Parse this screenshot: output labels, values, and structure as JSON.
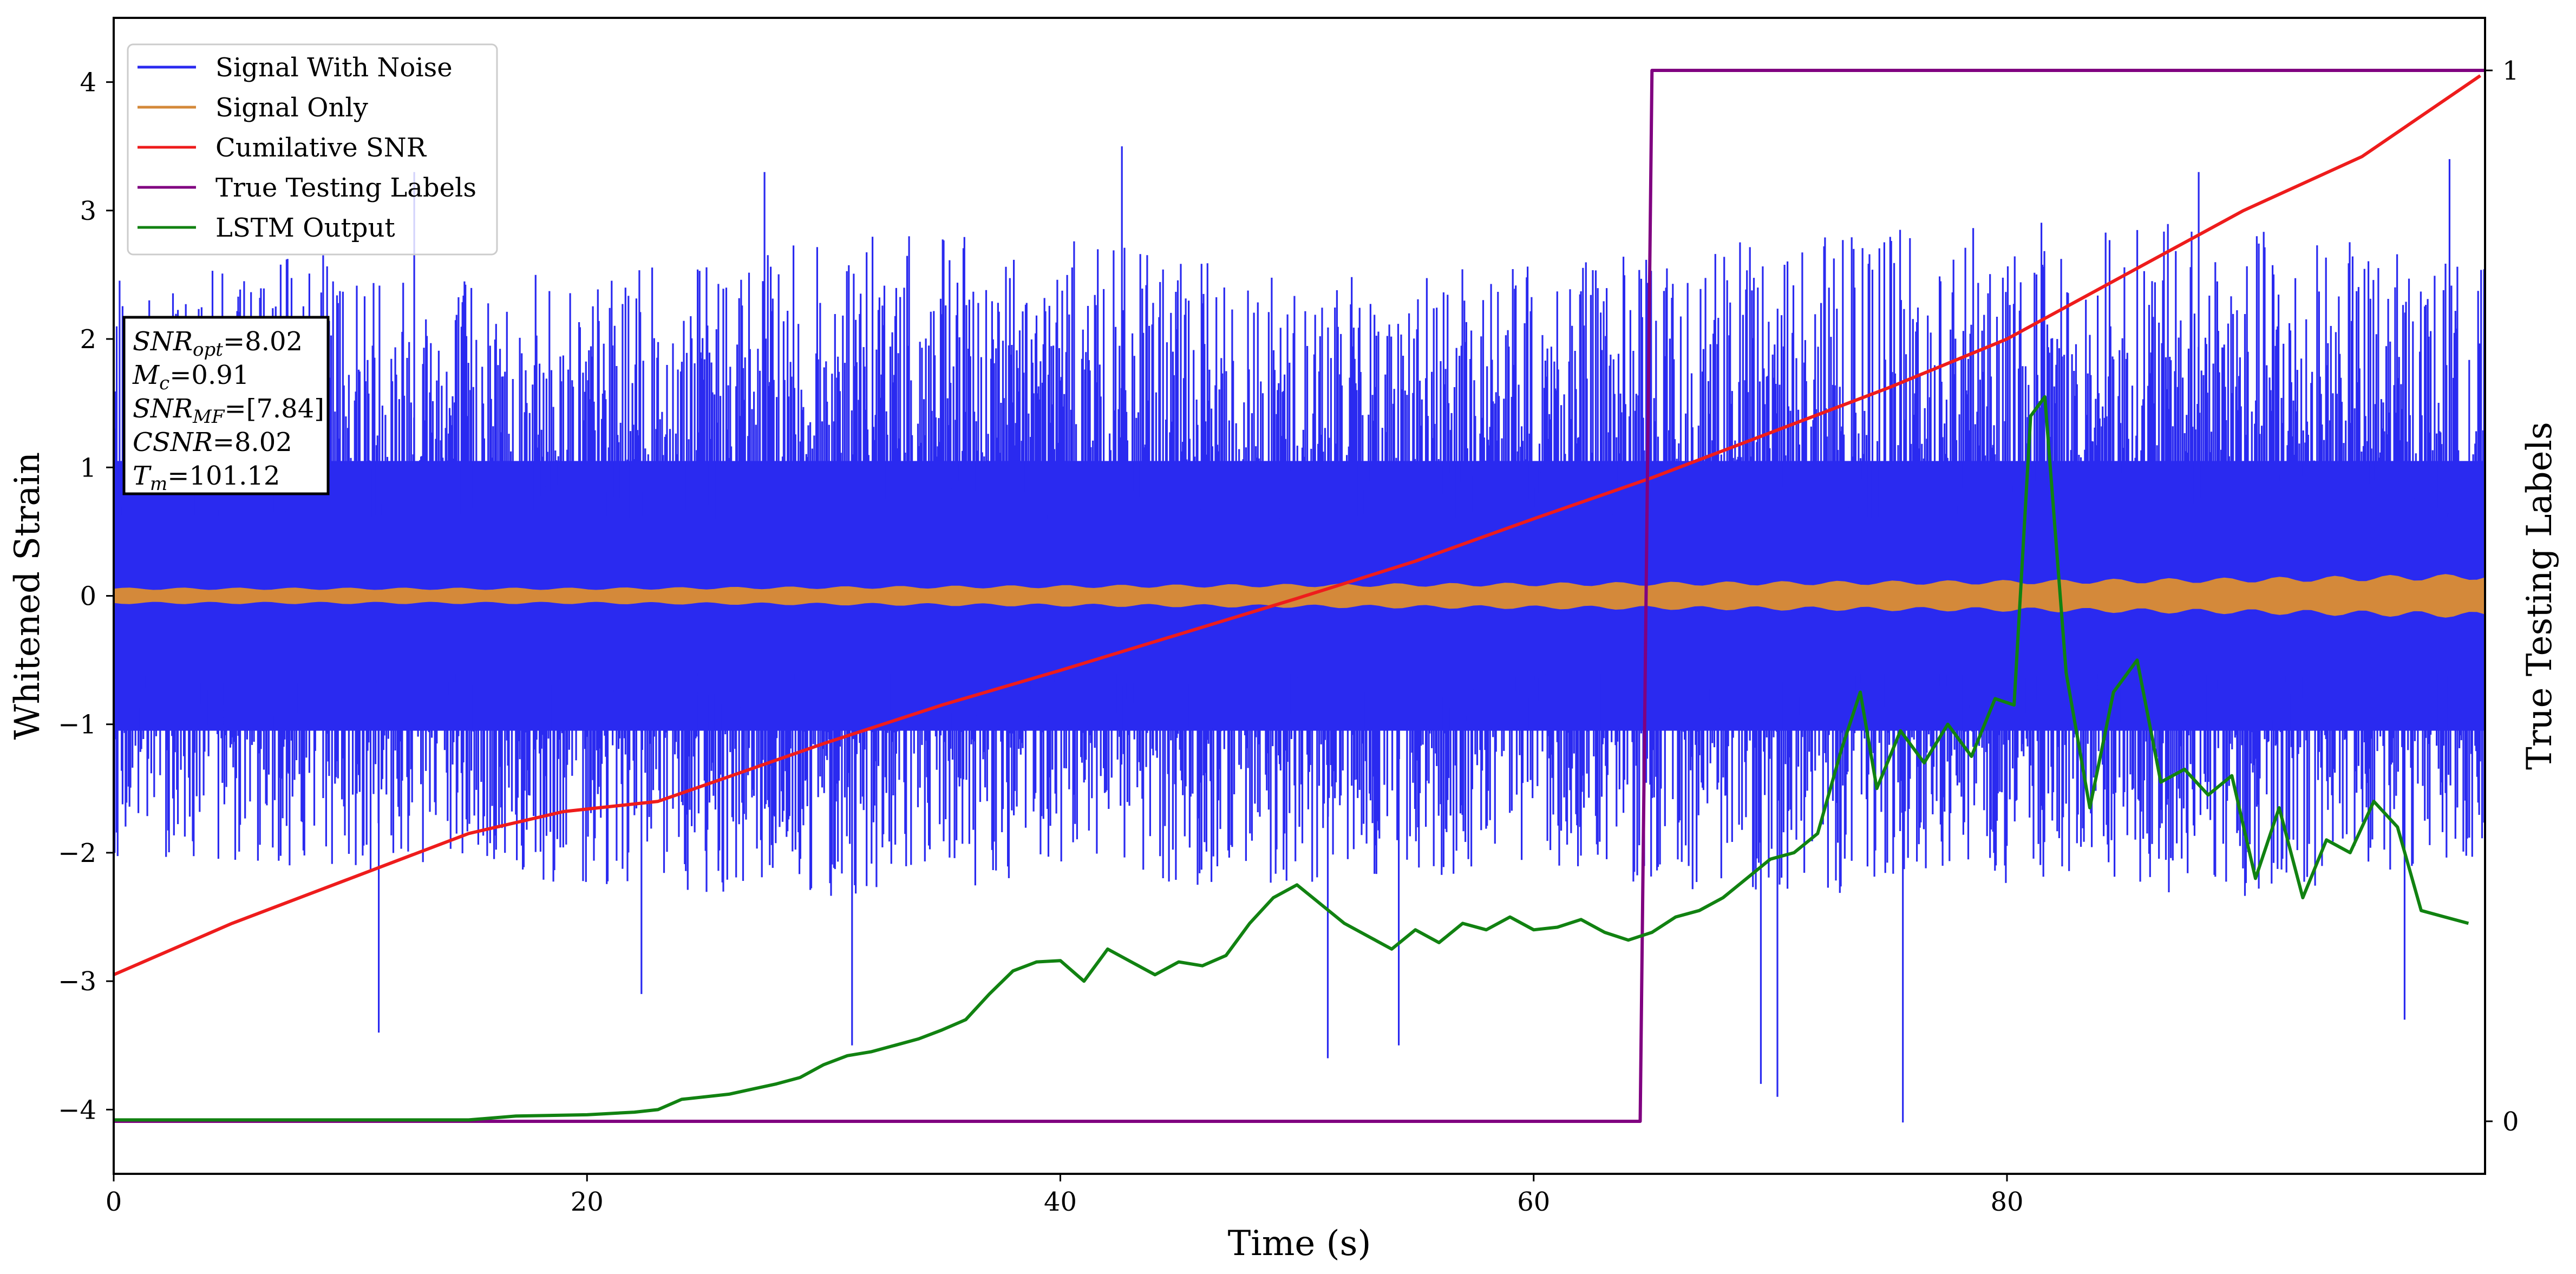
{
  "chart_data": {
    "type": "line",
    "xlabel": "Time (s)",
    "ylabel": "Whitened Strain",
    "ylabel_right": "True Testing Labels",
    "xlim": [
      0,
      100.2
    ],
    "ylim": [
      -4.5,
      4.5
    ],
    "ylim_right": [
      -0.05,
      1.05
    ],
    "x_ticks": [
      0,
      20,
      40,
      60,
      80
    ],
    "y_ticks": [
      -4,
      -3,
      -2,
      -1,
      0,
      1,
      2,
      3,
      4
    ],
    "y_ticks_right": [
      0,
      1
    ],
    "grid": false,
    "legend_position": "top-left",
    "colors": {
      "signal_with_noise": "#2a2af0",
      "signal_only": "#d4893a",
      "cumulative_snr": "#ee1c1c",
      "true_labels": "#800080",
      "lstm_output": "#118211"
    },
    "series": [
      {
        "name": "Signal With Noise",
        "axis": "left",
        "note_kind": "dense noise band",
        "envelope": {
          "x": [
            0,
            10,
            20,
            30,
            40,
            50,
            60,
            70,
            80,
            90,
            100
          ],
          "upper": [
            2.3,
            2.5,
            2.3,
            2.6,
            2.6,
            2.3,
            2.4,
            2.6,
            2.7,
            2.7,
            2.4
          ],
          "lower": [
            -1.9,
            -2.0,
            -2.1,
            -2.2,
            -2.1,
            -2.1,
            -2.0,
            -2.2,
            -2.1,
            -2.2,
            -1.9
          ]
        },
        "peaks": [
          {
            "x": 11.2,
            "y": -3.4
          },
          {
            "x": 12.7,
            "y": 3.3
          },
          {
            "x": 22.3,
            "y": -3.1
          },
          {
            "x": 27.5,
            "y": 3.3
          },
          {
            "x": 31.2,
            "y": -3.5
          },
          {
            "x": 42.6,
            "y": 3.5
          },
          {
            "x": 51.3,
            "y": -3.6
          },
          {
            "x": 54.3,
            "y": -3.5
          },
          {
            "x": 69.6,
            "y": -3.8
          },
          {
            "x": 70.3,
            "y": -3.9
          },
          {
            "x": 75.6,
            "y": -4.1
          },
          {
            "x": 98.7,
            "y": 3.4
          },
          {
            "x": 96.8,
            "y": -3.3
          },
          {
            "x": 88.1,
            "y": 3.3
          }
        ]
      },
      {
        "name": "Signal Only",
        "axis": "left",
        "envelope": {
          "x": [
            0,
            10,
            20,
            30,
            40,
            50,
            60,
            70,
            80,
            90,
            100
          ],
          "amplitude": [
            0.06,
            0.06,
            0.06,
            0.07,
            0.08,
            0.09,
            0.1,
            0.11,
            0.12,
            0.14,
            0.17
          ]
        }
      },
      {
        "name": "Cumilative SNR",
        "axis": "left",
        "x": [
          0,
          5,
          10,
          15,
          19,
          23,
          30,
          35,
          40,
          45,
          50,
          55,
          60,
          65,
          70,
          75,
          80,
          85,
          90,
          95,
          100
        ],
        "y": [
          -2.95,
          -2.55,
          -2.2,
          -1.85,
          -1.68,
          -1.6,
          -1.15,
          -0.85,
          -0.58,
          -0.3,
          -0.02,
          0.27,
          0.6,
          0.92,
          1.27,
          1.62,
          2.0,
          2.5,
          3.0,
          3.42,
          4.05
        ]
      },
      {
        "name": "True Testing Labels",
        "axis": "right",
        "x": [
          0,
          64.5,
          65.0,
          100.2
        ],
        "y": [
          0,
          0,
          1,
          1
        ]
      },
      {
        "name": "LSTM Output",
        "axis": "left",
        "x": [
          0,
          15,
          17,
          20,
          22,
          23,
          24,
          26,
          28,
          29,
          30,
          31,
          32,
          33,
          34,
          35,
          36,
          37,
          38,
          39,
          40,
          41,
          42,
          43,
          44,
          45,
          46,
          47,
          48,
          49,
          50,
          51,
          52,
          53,
          54,
          55,
          56,
          57,
          58,
          59,
          60,
          61,
          62,
          63,
          64,
          65,
          66,
          67,
          68,
          69,
          70,
          71,
          72,
          73,
          73.8,
          74.5,
          75.5,
          76.5,
          77.5,
          78.5,
          79.5,
          80.3,
          81.0,
          81.6,
          82.5,
          83.5,
          84.5,
          85.5,
          86.5,
          87.5,
          88.5,
          89.5,
          90.5,
          91.5,
          92.5,
          93.5,
          94.5,
          95.5,
          96.5,
          97.5,
          98.5,
          99.5
        ],
        "y": [
          -4.08,
          -4.08,
          -4.05,
          -4.04,
          -4.02,
          -4.0,
          -3.92,
          -3.88,
          -3.8,
          -3.75,
          -3.65,
          -3.58,
          -3.55,
          -3.5,
          -3.45,
          -3.38,
          -3.3,
          -3.1,
          -2.92,
          -2.85,
          -2.84,
          -3.0,
          -2.75,
          -2.85,
          -2.95,
          -2.85,
          -2.88,
          -2.8,
          -2.55,
          -2.35,
          -2.25,
          -2.4,
          -2.55,
          -2.65,
          -2.75,
          -2.6,
          -2.7,
          -2.55,
          -2.6,
          -2.5,
          -2.6,
          -2.58,
          -2.52,
          -2.62,
          -2.68,
          -2.62,
          -2.5,
          -2.45,
          -2.35,
          -2.2,
          -2.05,
          -2.0,
          -1.85,
          -1.2,
          -0.75,
          -1.5,
          -1.05,
          -1.3,
          -1.0,
          -1.25,
          -0.8,
          -0.85,
          1.4,
          1.55,
          -0.6,
          -1.65,
          -0.75,
          -0.5,
          -1.45,
          -1.35,
          -1.55,
          -1.4,
          -2.2,
          -1.65,
          -2.35,
          -1.9,
          -2.0,
          -1.6,
          -1.8,
          -2.45,
          -2.5,
          -2.55
        ]
      }
    ],
    "annotation": {
      "lines": [
        {
          "sym": "SNR",
          "sub": "opt",
          "value": "=8.02"
        },
        {
          "sym": "M",
          "sub": "c",
          "value": "=0.91"
        },
        {
          "sym": "SNR",
          "sub": "MF",
          "value": "=[7.84]"
        },
        {
          "sym": "CSNR",
          "sub": "",
          "value": "=8.02"
        },
        {
          "sym": "T",
          "sub": "m",
          "value": "=101.12"
        }
      ]
    }
  }
}
